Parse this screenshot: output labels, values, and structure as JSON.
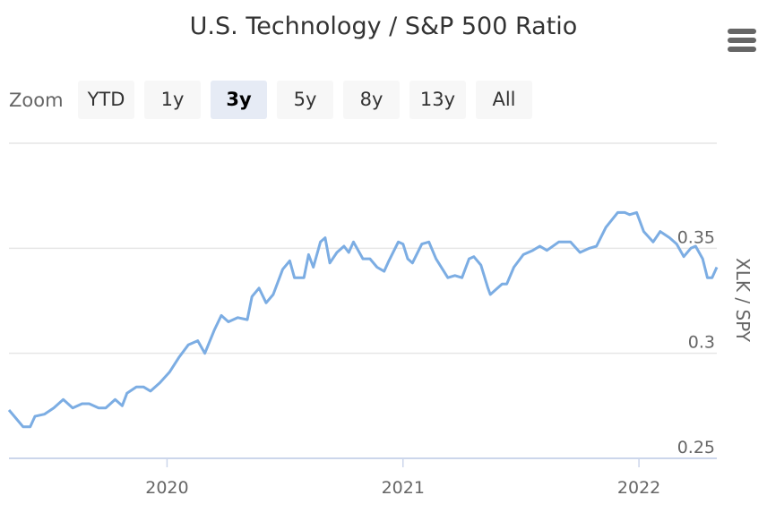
{
  "header": {
    "title": "U.S. Technology / S&P 500 Ratio",
    "menu_icon": "hamburger-icon"
  },
  "range_selector": {
    "label": "Zoom",
    "buttons": [
      "YTD",
      "1y",
      "3y",
      "5y",
      "8y",
      "13y",
      "All"
    ],
    "selected": "3y"
  },
  "colors": {
    "line": "#7cade3",
    "grid": "#e6e6e6",
    "axis": "#ccd6eb",
    "button_active": "#e6ebf5",
    "button": "#f7f7f7"
  },
  "chart_data": {
    "type": "line",
    "title": "U.S. Technology / S&P 500 Ratio",
    "xlabel": "",
    "ylabel": "XLK / SPY",
    "xlim": [
      2019.33,
      2022.33
    ],
    "ylim": [
      0.25,
      0.4
    ],
    "x_ticks": [
      2020,
      2021,
      2022
    ],
    "x_tick_labels": [
      "2020",
      "2021",
      "2022"
    ],
    "y_ticks": [
      0.25,
      0.3,
      0.35
    ],
    "y_tick_labels": [
      "0.25",
      "0.3",
      "0.35"
    ],
    "grid": true,
    "series": [
      {
        "name": "XLK / SPY",
        "x": [
          2019.33,
          2019.36,
          2019.39,
          2019.42,
          2019.44,
          2019.48,
          2019.52,
          2019.56,
          2019.6,
          2019.64,
          2019.67,
          2019.71,
          2019.74,
          2019.78,
          2019.81,
          2019.83,
          2019.87,
          2019.9,
          2019.93,
          2019.97,
          2020.01,
          2020.05,
          2020.09,
          2020.13,
          2020.16,
          2020.2,
          2020.23,
          2020.26,
          2020.3,
          2020.34,
          2020.36,
          2020.39,
          2020.42,
          2020.45,
          2020.49,
          2020.52,
          2020.54,
          2020.58,
          2020.6,
          2020.62,
          2020.65,
          2020.67,
          2020.69,
          2020.72,
          2020.75,
          2020.77,
          2020.79,
          2020.83,
          2020.86,
          2020.89,
          2020.92,
          2020.94,
          2020.98,
          2021.0,
          2021.02,
          2021.04,
          2021.08,
          2021.11,
          2021.14,
          2021.19,
          2021.22,
          2021.25,
          2021.28,
          2021.3,
          2021.33,
          2021.36,
          2021.37,
          2021.39,
          2021.42,
          2021.44,
          2021.47,
          2021.51,
          2021.55,
          2021.58,
          2021.61,
          2021.66,
          2021.71,
          2021.75,
          2021.79,
          2021.82,
          2021.86,
          2021.91,
          2021.94,
          2021.96,
          2021.99,
          2022.02,
          2022.06,
          2022.09,
          2022.13,
          2022.16,
          2022.19,
          2022.22,
          2022.24,
          2022.27,
          2022.29,
          2022.31,
          2022.33
        ],
        "values": [
          0.273,
          0.269,
          0.265,
          0.265,
          0.27,
          0.271,
          0.274,
          0.278,
          0.274,
          0.276,
          0.276,
          0.274,
          0.274,
          0.278,
          0.275,
          0.281,
          0.284,
          0.284,
          0.282,
          0.286,
          0.291,
          0.298,
          0.304,
          0.306,
          0.3,
          0.311,
          0.318,
          0.315,
          0.317,
          0.316,
          0.327,
          0.331,
          0.324,
          0.328,
          0.34,
          0.344,
          0.336,
          0.336,
          0.347,
          0.341,
          0.353,
          0.355,
          0.343,
          0.348,
          0.351,
          0.348,
          0.353,
          0.345,
          0.345,
          0.341,
          0.339,
          0.344,
          0.353,
          0.352,
          0.345,
          0.343,
          0.352,
          0.353,
          0.345,
          0.336,
          0.337,
          0.336,
          0.345,
          0.346,
          0.342,
          0.331,
          0.328,
          0.33,
          0.333,
          0.333,
          0.341,
          0.347,
          0.349,
          0.351,
          0.349,
          0.353,
          0.353,
          0.348,
          0.35,
          0.351,
          0.36,
          0.367,
          0.367,
          0.366,
          0.367,
          0.358,
          0.353,
          0.358,
          0.355,
          0.352,
          0.346,
          0.35,
          0.351,
          0.345,
          0.336,
          0.336,
          0.341
        ]
      }
    ]
  }
}
